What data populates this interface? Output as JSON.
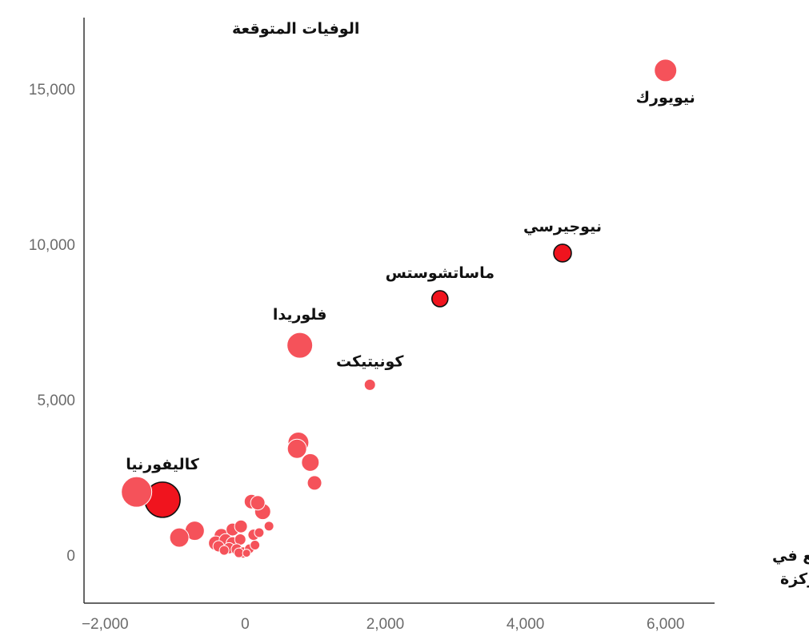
{
  "chart_data": {
    "type": "scatter",
    "title": "",
    "ylabel": "الوفيات المتوقعة",
    "xlabel": [
      "العجز المتوقع في",
      "أسِرَّة العناية المركزة"
    ],
    "xlim": [
      -2300,
      6700
    ],
    "ylim": [
      -1550,
      17300
    ],
    "x_ticks": [
      {
        "value": -2000,
        "label": "−2,000"
      },
      {
        "value": 0,
        "label": "0"
      },
      {
        "value": 2000,
        "label": "2,000"
      },
      {
        "value": 4000,
        "label": "4,000"
      },
      {
        "value": 6000,
        "label": "6,000"
      }
    ],
    "y_ticks": [
      {
        "value": 0,
        "label": "0"
      },
      {
        "value": 5000,
        "label": "5,000"
      },
      {
        "value": 10000,
        "label": "10,000"
      },
      {
        "value": 15000,
        "label": "15,000"
      }
    ],
    "colors": {
      "highlight": "#f0141e",
      "light": "#f5525a",
      "outline": "#111111"
    },
    "points": [
      {
        "name": "نيويورك",
        "x": 6000,
        "y": 15600,
        "size": 14,
        "style": "light",
        "label": "نيويورك",
        "label_pos": "below"
      },
      {
        "name": "نيوجيرسي",
        "x": 4530,
        "y": 9720,
        "size": 11,
        "style": "highlight",
        "label": "نيوجيرسي",
        "label_pos": "above"
      },
      {
        "name": "ماساتشوستس",
        "x": 2780,
        "y": 8250,
        "size": 10,
        "style": "highlight",
        "label": "ماساتشوستس",
        "label_pos": "above"
      },
      {
        "name": "فلوريدا",
        "x": 780,
        "y": 6750,
        "size": 16,
        "style": "light",
        "label": "فلوريدا",
        "label_pos": "above"
      },
      {
        "name": "كونيتيكت",
        "x": 1780,
        "y": 5480,
        "size": 7,
        "style": "light",
        "label": "كونيتيكت",
        "label_pos": "above"
      },
      {
        "name": "كاليفورنيا",
        "x": -1180,
        "y": 1780,
        "size": 22,
        "style": "highlight",
        "label": "كاليفورنيا",
        "label_pos": "above"
      },
      {
        "x": -1550,
        "y": 2030,
        "size": 19,
        "style": "light"
      },
      {
        "x": 760,
        "y": 3620,
        "size": 13,
        "style": "light"
      },
      {
        "x": 740,
        "y": 3420,
        "size": 12,
        "style": "light"
      },
      {
        "x": 930,
        "y": 2980,
        "size": 11,
        "style": "light"
      },
      {
        "x": 990,
        "y": 2320,
        "size": 9,
        "style": "light"
      },
      {
        "x": -720,
        "y": 780,
        "size": 12,
        "style": "light"
      },
      {
        "x": -940,
        "y": 560,
        "size": 12,
        "style": "light"
      },
      {
        "x": 90,
        "y": 1720,
        "size": 9,
        "style": "light"
      },
      {
        "x": 180,
        "y": 1680,
        "size": 9,
        "style": "light"
      },
      {
        "x": 250,
        "y": 1400,
        "size": 10,
        "style": "light"
      },
      {
        "x": 340,
        "y": 930,
        "size": 6,
        "style": "light"
      },
      {
        "x": -340,
        "y": 620,
        "size": 9,
        "style": "light"
      },
      {
        "x": -420,
        "y": 380,
        "size": 9,
        "style": "light"
      },
      {
        "x": -180,
        "y": 820,
        "size": 8,
        "style": "light"
      },
      {
        "x": -60,
        "y": 920,
        "size": 8,
        "style": "light"
      },
      {
        "x": -280,
        "y": 480,
        "size": 8,
        "style": "light"
      },
      {
        "x": -180,
        "y": 380,
        "size": 8,
        "style": "light"
      },
      {
        "x": -70,
        "y": 500,
        "size": 7,
        "style": "light"
      },
      {
        "x": 120,
        "y": 650,
        "size": 7,
        "style": "light"
      },
      {
        "x": 200,
        "y": 720,
        "size": 6,
        "style": "light"
      },
      {
        "x": -230,
        "y": 220,
        "size": 7,
        "style": "light"
      },
      {
        "x": -120,
        "y": 180,
        "size": 7,
        "style": "light"
      },
      {
        "x": -30,
        "y": 80,
        "size": 7,
        "style": "light"
      },
      {
        "x": 60,
        "y": 200,
        "size": 6,
        "style": "light"
      },
      {
        "x": 140,
        "y": 320,
        "size": 6,
        "style": "light"
      },
      {
        "x": -380,
        "y": 280,
        "size": 7,
        "style": "light"
      },
      {
        "x": -300,
        "y": 150,
        "size": 6,
        "style": "light"
      },
      {
        "x": -90,
        "y": 70,
        "size": 6,
        "style": "light"
      },
      {
        "x": 20,
        "y": 60,
        "size": 5,
        "style": "light"
      }
    ]
  }
}
